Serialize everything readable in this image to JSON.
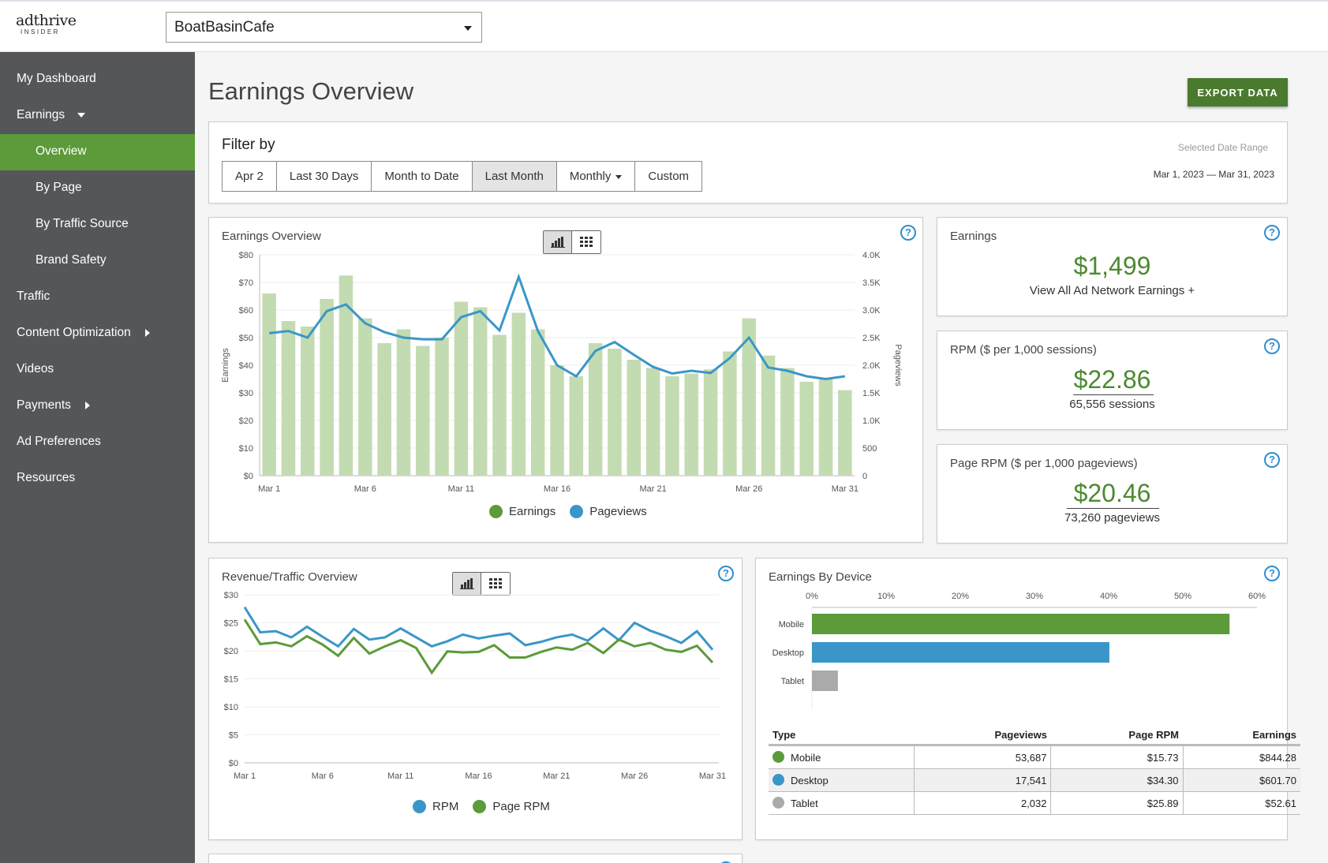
{
  "brand": {
    "name": "adthrive",
    "sub": "INSIDER"
  },
  "site_select": {
    "value": "BoatBasinCafe"
  },
  "sidebar": {
    "items": [
      {
        "label": "My Dashboard"
      },
      {
        "label": "Earnings"
      },
      {
        "label": "Overview"
      },
      {
        "label": "By Page"
      },
      {
        "label": "By Traffic Source"
      },
      {
        "label": "Brand Safety"
      },
      {
        "label": "Traffic"
      },
      {
        "label": "Content Optimization"
      },
      {
        "label": "Videos"
      },
      {
        "label": "Payments"
      },
      {
        "label": "Ad Preferences"
      },
      {
        "label": "Resources"
      }
    ]
  },
  "page": {
    "title": "Earnings Overview",
    "export_label": "EXPORT DATA"
  },
  "filter": {
    "title": "Filter by",
    "buttons": [
      "Apr 2",
      "Last 30 Days",
      "Month to Date",
      "Last Month",
      "Monthly",
      "Custom"
    ],
    "active": "Last Month",
    "date_range_label": "Selected Date Range",
    "date_range_value": "Mar 1, 2023 — Mar 31, 2023"
  },
  "kpis": {
    "earnings": {
      "title": "Earnings",
      "value": "$1,499",
      "sub": "View All Ad Network Earnings +"
    },
    "rpm": {
      "title": "RPM ($ per 1,000 sessions)",
      "value": "$22.86",
      "sub": "65,556 sessions"
    },
    "page_rpm": {
      "title": "Page RPM ($ per 1,000 pageviews)",
      "value": "$20.46",
      "sub": "73,260 pageviews"
    }
  },
  "colors": {
    "green": "#5c9a3a",
    "blue": "#3a96c8",
    "bar_green": "#c3dbb1",
    "gray": "#aaaaaa"
  },
  "chart_data": [
    {
      "type": "bar",
      "title": "Earnings Overview",
      "ylabel": "Earnings",
      "y2label": "Pageviews",
      "x_ticks": [
        "Mar 1",
        "Mar 6",
        "Mar 11",
        "Mar 16",
        "Mar 21",
        "Mar 26",
        "Mar 31"
      ],
      "y_ticks": [
        "$80",
        "$70",
        "$60",
        "$50",
        "$40",
        "$30",
        "$20",
        "$10",
        "$0"
      ],
      "y2_ticks": [
        "4.0K",
        "3.5K",
        "3.0K",
        "2.5K",
        "2.0K",
        "1.5K",
        "1.0K",
        "500",
        "0"
      ],
      "ylim": [
        0,
        80
      ],
      "y2lim": [
        0,
        4000
      ],
      "categories": [
        "Mar 1",
        "Mar 2",
        "Mar 3",
        "Mar 4",
        "Mar 5",
        "Mar 6",
        "Mar 7",
        "Mar 8",
        "Mar 9",
        "Mar 10",
        "Mar 11",
        "Mar 12",
        "Mar 13",
        "Mar 14",
        "Mar 15",
        "Mar 16",
        "Mar 17",
        "Mar 18",
        "Mar 19",
        "Mar 20",
        "Mar 21",
        "Mar 22",
        "Mar 23",
        "Mar 24",
        "Mar 25",
        "Mar 26",
        "Mar 27",
        "Mar 28",
        "Mar 29",
        "Mar 30",
        "Mar 31"
      ],
      "series": [
        {
          "name": "Earnings",
          "kind": "bar",
          "values": [
            66,
            56,
            54,
            64,
            72.5,
            57,
            48,
            53,
            47,
            50,
            63,
            61,
            51,
            59,
            53,
            40,
            36,
            48,
            46,
            42,
            39,
            36,
            37,
            38.5,
            45,
            57,
            43.5,
            39,
            34,
            35.5,
            31
          ]
        },
        {
          "name": "Pageviews",
          "kind": "line",
          "values": [
            2580,
            2620,
            2500,
            2980,
            3100,
            2760,
            2600,
            2500,
            2470,
            2470,
            2870,
            2980,
            2630,
            3600,
            2620,
            2000,
            1800,
            2260,
            2420,
            2190,
            1970,
            1850,
            1900,
            1860,
            2130,
            2500,
            1960,
            1900,
            1800,
            1750,
            1800
          ]
        }
      ]
    },
    {
      "type": "line",
      "title": "Revenue/Traffic Overview",
      "x_ticks": [
        "Mar 1",
        "Mar 6",
        "Mar 11",
        "Mar 16",
        "Mar 21",
        "Mar 26",
        "Mar 31"
      ],
      "y_ticks": [
        "$30",
        "$25",
        "$20",
        "$15",
        "$10",
        "$5",
        "$0"
      ],
      "ylim": [
        0,
        30
      ],
      "categories": [
        "Mar 1",
        "Mar 2",
        "Mar 3",
        "Mar 4",
        "Mar 5",
        "Mar 6",
        "Mar 7",
        "Mar 8",
        "Mar 9",
        "Mar 10",
        "Mar 11",
        "Mar 12",
        "Mar 13",
        "Mar 14",
        "Mar 15",
        "Mar 16",
        "Mar 17",
        "Mar 18",
        "Mar 19",
        "Mar 20",
        "Mar 21",
        "Mar 22",
        "Mar 23",
        "Mar 24",
        "Mar 25",
        "Mar 26",
        "Mar 27",
        "Mar 28",
        "Mar 29",
        "Mar 30",
        "Mar 31"
      ],
      "series": [
        {
          "name": "RPM",
          "values": [
            27.8,
            23.3,
            23.5,
            22.4,
            24.3,
            22.5,
            20.8,
            23.9,
            22.0,
            22.4,
            24.0,
            22.4,
            20.8,
            21.7,
            22.9,
            22.2,
            22.7,
            23.1,
            21.0,
            21.6,
            22.4,
            22.9,
            21.8,
            24.0,
            21.9,
            25.0,
            23.6,
            22.6,
            21.4,
            23.5,
            20.2
          ]
        },
        {
          "name": "Page RPM",
          "values": [
            25.6,
            21.2,
            21.5,
            20.8,
            22.6,
            21.1,
            19.1,
            22.3,
            19.5,
            20.8,
            21.9,
            20.5,
            16.1,
            19.9,
            19.7,
            19.8,
            21.0,
            18.8,
            18.8,
            19.8,
            20.6,
            20.2,
            21.4,
            19.6,
            22.0,
            20.8,
            21.4,
            20.2,
            19.8,
            20.9,
            17.9
          ]
        }
      ]
    },
    {
      "type": "bar",
      "orientation": "horizontal",
      "title": "Earnings By Device",
      "x_ticks": [
        "0%",
        "10%",
        "20%",
        "30%",
        "40%",
        "50%",
        "60%"
      ],
      "xlim": [
        0,
        60
      ],
      "categories": [
        "Mobile",
        "Desktop",
        "Tablet"
      ],
      "values": [
        56.3,
        40.1,
        3.5
      ]
    }
  ],
  "device_table": {
    "headers": [
      "Type",
      "Pageviews",
      "Page RPM",
      "Earnings"
    ],
    "rows": [
      {
        "type": "Mobile",
        "pageviews": "53,687",
        "page_rpm": "$15.73",
        "earnings": "$844.28"
      },
      {
        "type": "Desktop",
        "pageviews": "17,541",
        "page_rpm": "$34.30",
        "earnings": "$601.70"
      },
      {
        "type": "Tablet",
        "pageviews": "2,032",
        "page_rpm": "$25.89",
        "earnings": "$52.61"
      }
    ]
  },
  "icons": {
    "help": "?"
  }
}
